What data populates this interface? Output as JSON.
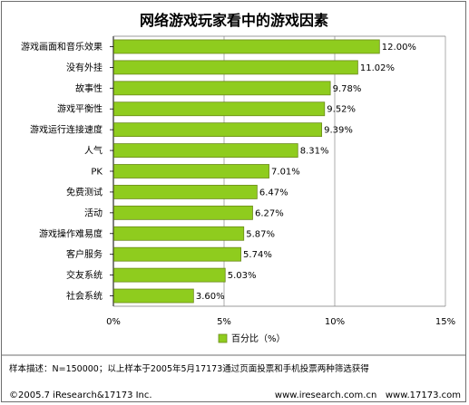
{
  "chart_data": {
    "type": "bar",
    "orientation": "horizontal",
    "title": "网络游戏玩家看中的游戏因素",
    "categories": [
      "游戏画面和音乐效果",
      "没有外挂",
      "故事性",
      "游戏平衡性",
      "游戏运行连接速度",
      "人气",
      "PK",
      "免费测试",
      "活动",
      "游戏操作难易度",
      "客户服务",
      "交友系统",
      "社会系统"
    ],
    "values": [
      12.0,
      11.02,
      9.78,
      9.52,
      9.39,
      8.31,
      7.01,
      6.47,
      6.27,
      5.87,
      5.74,
      5.03,
      3.6
    ],
    "value_labels": [
      "12.00%",
      "11.02%",
      "9.78%",
      "9.52%",
      "9.39%",
      "8.31%",
      "7.01%",
      "6.47%",
      "6.27%",
      "5.87%",
      "5.74%",
      "5.03%",
      "3.60%"
    ],
    "series": [
      {
        "name": "百分比（%）",
        "values": [
          12.0,
          11.02,
          9.78,
          9.52,
          9.39,
          8.31,
          7.01,
          6.47,
          6.27,
          5.87,
          5.74,
          5.03,
          3.6
        ]
      }
    ],
    "xlim": [
      0,
      15
    ],
    "xticks": [
      "0%",
      "5%",
      "10%",
      "15%"
    ],
    "xtick_values": [
      0,
      5,
      10,
      15
    ],
    "grid": true,
    "legend_position": "bottom",
    "bar_color": "#8fcc1e"
  },
  "footer": {
    "note": "样本描述：N=150000；以上样本于2005年5月17173通过页面投票和手机投票两种筛选获得",
    "copyright": "©2005.7 iResearch&17173 Inc.",
    "sites": "www.iresearch.com.cn   www.17173.com"
  }
}
